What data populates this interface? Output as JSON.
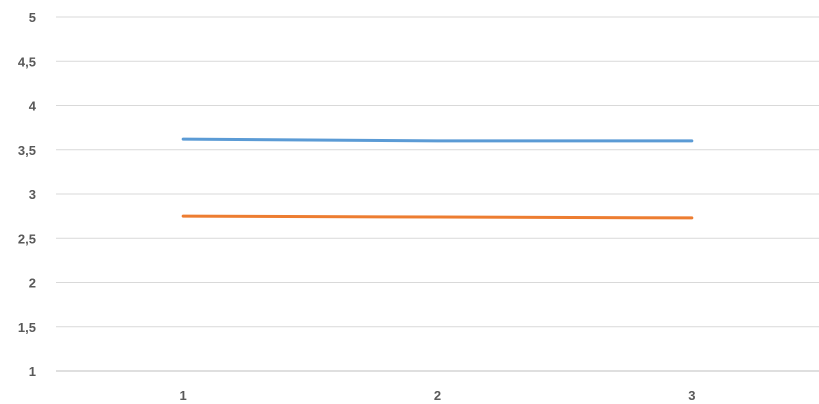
{
  "chart_data": {
    "type": "line",
    "title": "",
    "xlabel": "",
    "ylabel": "",
    "categories": [
      "1",
      "2",
      "3"
    ],
    "ylim": [
      1,
      5
    ],
    "yticks": [
      1,
      1.5,
      2,
      2.5,
      3,
      3.5,
      4,
      4.5,
      5
    ],
    "ytick_labels": [
      "1",
      "1,5",
      "2",
      "2,5",
      "3",
      "3,5",
      "4",
      "4,5",
      "5"
    ],
    "grid": true,
    "legend": "none",
    "series": [
      {
        "values": [
          3.62,
          3.6,
          3.6
        ],
        "color": "#5b9bd5"
      },
      {
        "values": [
          2.75,
          2.74,
          2.73
        ],
        "color": "#ed7d31"
      }
    ]
  }
}
